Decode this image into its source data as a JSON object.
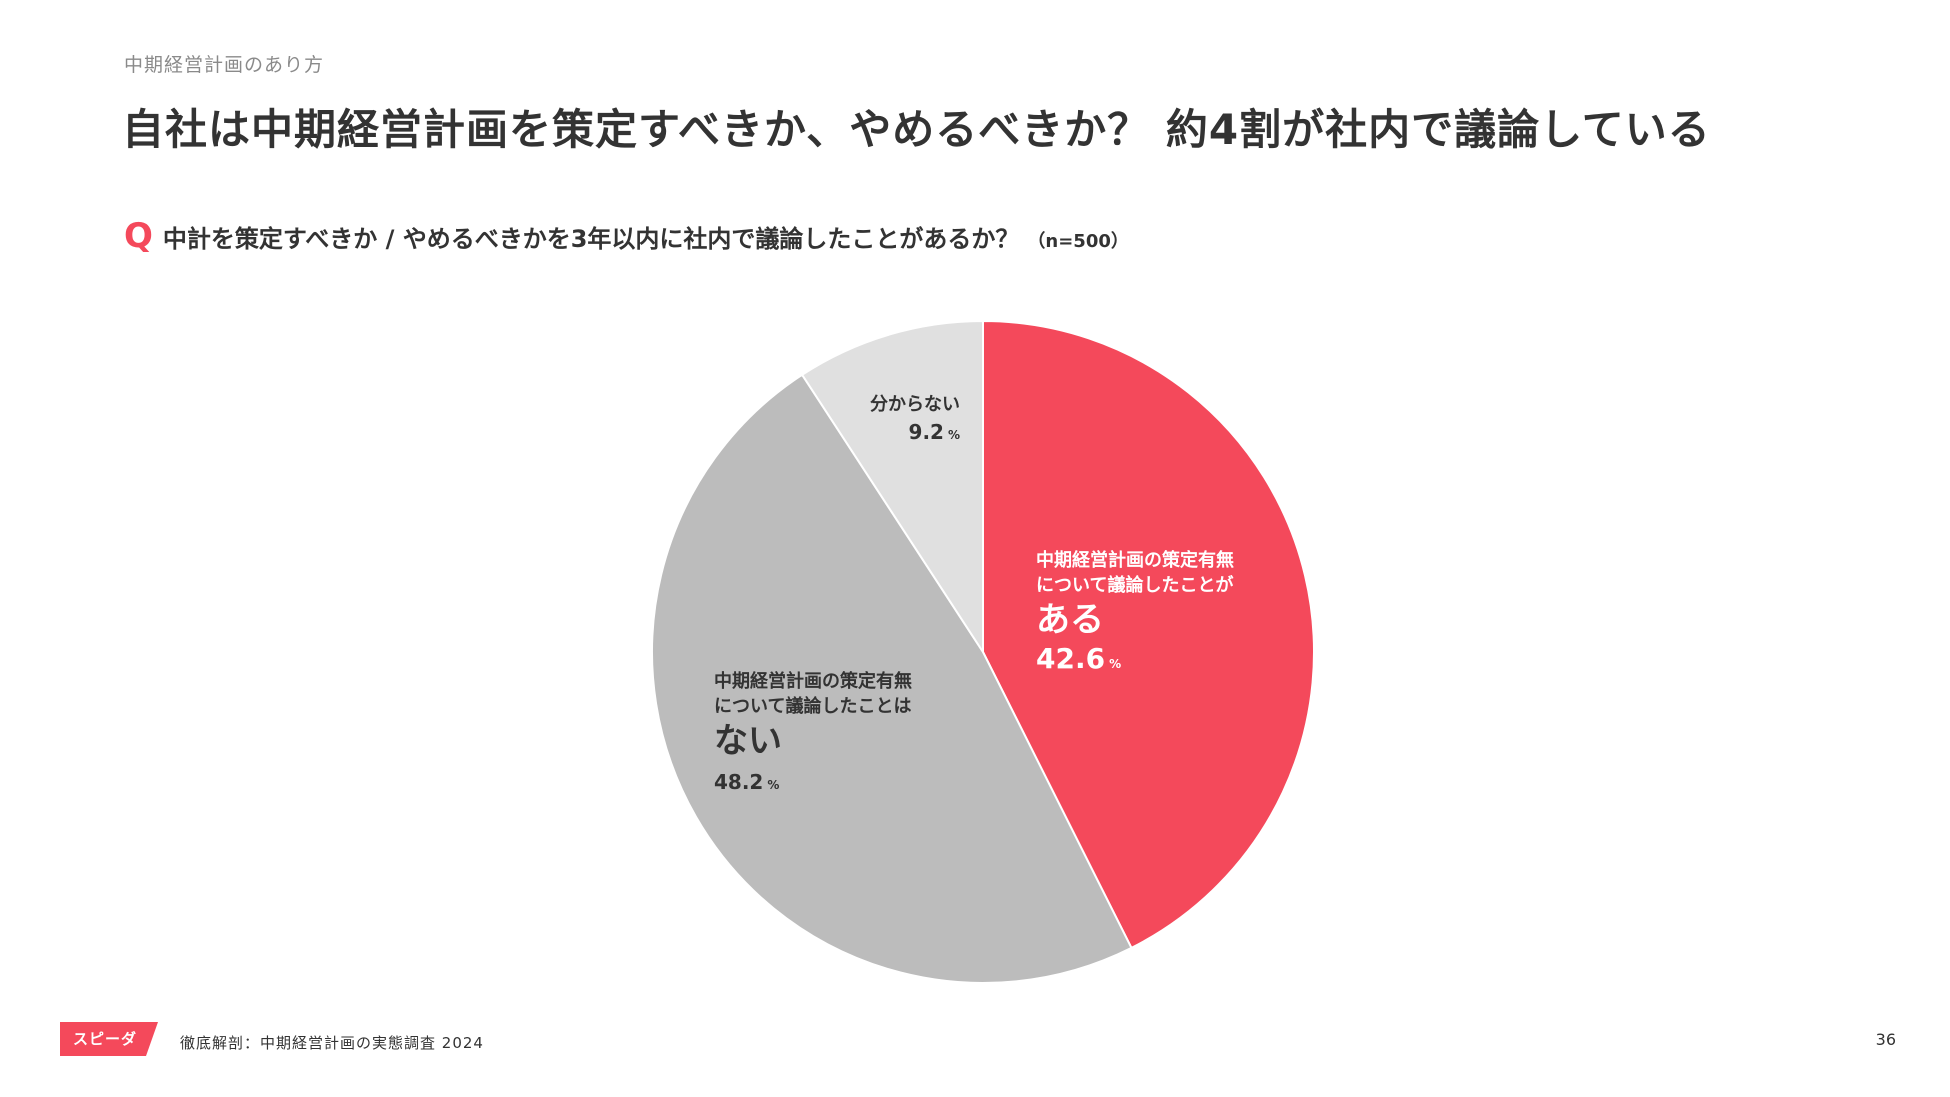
{
  "header": {
    "section_label": "中期経営計画のあり方",
    "title": "自社は中期経営計画を策定すべきか、やめるべきか？ 約4割が社内で議論している"
  },
  "question": {
    "mark": "Q",
    "text": "中計を策定すべきか / やめるべきかを3年以内に社内で議論したことがあるか？",
    "sample": "（n=500）"
  },
  "chart_data": {
    "type": "pie",
    "unit": "%",
    "slices": [
      {
        "label_lines": [
          "中期経営計画の策定有無",
          "について議論したことが"
        ],
        "label_big": "ある",
        "value": 42.6,
        "value_text": "42.6",
        "color": "#f4495b",
        "text_color": "#ffffff"
      },
      {
        "label_lines": [
          "中期経営計画の策定有無",
          "について議論したことは"
        ],
        "label_big": "ない",
        "value": 48.2,
        "value_text": "48.2",
        "color": "#bcbcbc",
        "text_color": "#333333"
      },
      {
        "label_lines": [
          "分からない"
        ],
        "label_big": "",
        "value": 9.2,
        "value_text": "9.2",
        "color": "#e0e0e0",
        "text_color": "#333333"
      }
    ]
  },
  "footer": {
    "logo_text": "スピーダ",
    "source": "徹底解剖：中期経営計画の実態調査 2024",
    "page_number": "36",
    "logo_color": "#f4495b"
  }
}
